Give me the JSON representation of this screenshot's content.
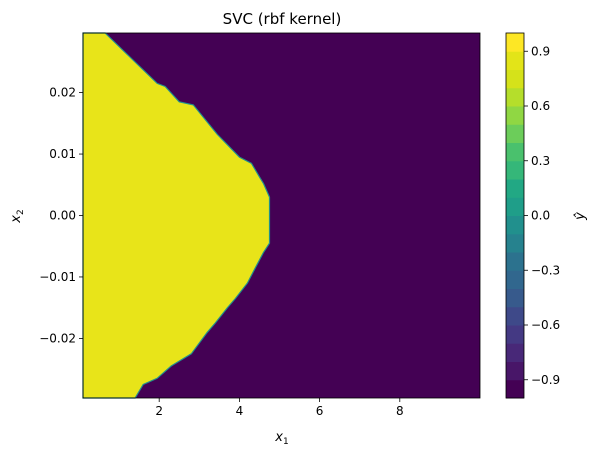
{
  "chart_data": {
    "type": "heatmap",
    "title": "SVC (rbf kernel)",
    "xlabel": {
      "base": "x",
      "sub": "1"
    },
    "ylabel": {
      "base": "x",
      "sub": "2"
    },
    "colorbar_label": "ŷ",
    "xlim": [
      0.1,
      10.0
    ],
    "ylim": [
      -0.0297,
      0.0297
    ],
    "xticks": [
      2,
      4,
      6,
      8
    ],
    "xtick_labels": [
      "2",
      "4",
      "6",
      "8"
    ],
    "yticks": [
      0.02,
      0.01,
      0.0,
      -0.01,
      -0.02
    ],
    "ytick_labels": [
      "0.02",
      "0.01",
      "0.00",
      "−0.01",
      "−0.02"
    ],
    "classes": [
      {
        "value": 1,
        "color": "#e8e419"
      },
      {
        "value": -1,
        "color": "#440154"
      }
    ],
    "decision_boundary": [
      {
        "x": 0.65,
        "y": 0.0297
      },
      {
        "x": 1.95,
        "y": 0.0215
      },
      {
        "x": 2.15,
        "y": 0.021
      },
      {
        "x": 2.5,
        "y": 0.0185
      },
      {
        "x": 2.85,
        "y": 0.018
      },
      {
        "x": 3.45,
        "y": 0.0132
      },
      {
        "x": 4.0,
        "y": 0.0095
      },
      {
        "x": 4.3,
        "y": 0.0085
      },
      {
        "x": 4.5,
        "y": 0.0063
      },
      {
        "x": 4.6,
        "y": 0.0052
      },
      {
        "x": 4.75,
        "y": 0.003
      },
      {
        "x": 4.75,
        "y": -0.0045
      },
      {
        "x": 4.6,
        "y": -0.006
      },
      {
        "x": 4.4,
        "y": -0.0085
      },
      {
        "x": 4.2,
        "y": -0.011
      },
      {
        "x": 3.9,
        "y": -0.0135
      },
      {
        "x": 3.7,
        "y": -0.015
      },
      {
        "x": 3.4,
        "y": -0.0175
      },
      {
        "x": 3.2,
        "y": -0.019
      },
      {
        "x": 2.8,
        "y": -0.0225
      },
      {
        "x": 2.3,
        "y": -0.0245
      },
      {
        "x": 1.95,
        "y": -0.0265
      },
      {
        "x": 1.6,
        "y": -0.0275
      },
      {
        "x": 1.4,
        "y": -0.0297
      }
    ],
    "colorbar": {
      "vmin": -1.0,
      "vmax": 1.0,
      "levels": 20,
      "ticks": [
        0.9,
        0.6,
        0.3,
        0.0,
        -0.3,
        -0.6,
        -0.9
      ],
      "tick_labels": [
        "0.9",
        "0.6",
        "0.3",
        "0.0",
        "−0.3",
        "−0.6",
        "−0.9"
      ],
      "colors": [
        "#440154",
        "#481668",
        "#482878",
        "#443983",
        "#3e4989",
        "#375a8c",
        "#31678e",
        "#2c728e",
        "#26828e",
        "#21908d",
        "#1f9e89",
        "#22a884",
        "#35b779",
        "#4ac16d",
        "#6ccd5a",
        "#90d743",
        "#b5de2b",
        "#d5e21a",
        "#e3e418",
        "#fde725"
      ]
    }
  }
}
